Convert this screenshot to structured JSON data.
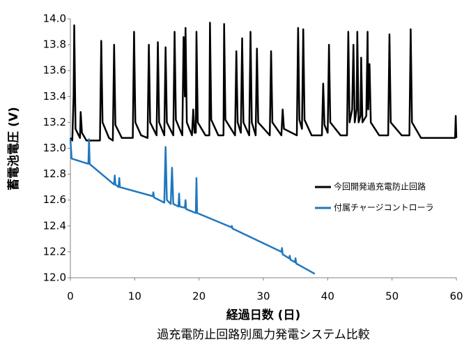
{
  "chart_data": {
    "type": "line",
    "title": "過充電防止回路別風力発電システム比較",
    "x_label": "経過日数 (日)",
    "y_label": "蓄電池電圧 (V)",
    "xlim": [
      0,
      60
    ],
    "xticks": [
      0,
      10,
      20,
      30,
      40,
      50,
      60
    ],
    "ylim": [
      12.0,
      14.0
    ],
    "yticks": [
      {
        "value": 12.0,
        "label": "12.0"
      },
      12.2,
      12.4,
      12.6,
      12.8,
      {
        "value": 13.0,
        "label": "13.0"
      },
      13.2,
      13.4,
      13.6,
      13.8,
      {
        "value": 14.0,
        "label": "14.0"
      }
    ],
    "grid": false,
    "legend": "right",
    "series": [
      {
        "name": "今回開発過充電防止回路",
        "color": "#000000",
        "x": [
          0,
          0.3,
          0.5,
          0.6,
          0.8,
          1.5,
          1.6,
          1.8,
          2.5,
          4.6,
          4.8,
          5.0,
          6.0,
          6.6,
          6.8,
          7.0,
          8.0,
          9.7,
          9.9,
          10.1,
          11.0,
          12.0,
          12.2,
          12.4,
          13.4,
          13.6,
          13.8,
          14.6,
          14.8,
          15.0,
          16.0,
          16.2,
          16.4,
          17.4,
          17.6,
          17.8,
          17.9,
          18.1,
          18.9,
          19.1,
          19.3,
          19.5,
          19.6,
          19.8,
          21.0,
          21.6,
          21.7,
          21.9,
          23.0,
          23.8,
          23.9,
          24.1,
          25.6,
          25.8,
          26.0,
          26.5,
          26.7,
          26.9,
          27.8,
          28.0,
          28.2,
          28.8,
          29.0,
          29.2,
          31.0,
          31.2,
          31.4,
          32.8,
          33.0,
          33.2,
          35.2,
          35.4,
          35.6,
          36.0,
          36.2,
          36.4,
          37.5,
          39.1,
          39.3,
          39.5,
          40.0,
          40.2,
          40.4,
          42.0,
          43.0,
          43.2,
          43.4,
          43.8,
          44.0,
          44.2,
          44.5,
          44.6,
          44.8,
          45.1,
          45.2,
          45.4,
          46.0,
          46.2,
          46.3,
          46.5,
          46.7,
          48.0,
          49.4,
          49.6,
          49.8,
          51.5,
          52.7,
          52.9,
          53.1,
          54.5,
          57.0,
          59.0,
          59.8,
          59.9,
          60.0
        ],
        "values": [
          13.08,
          13.06,
          13.4,
          13.95,
          13.15,
          13.08,
          13.28,
          13.12,
          13.06,
          13.06,
          13.83,
          13.2,
          13.08,
          13.06,
          13.8,
          13.18,
          13.08,
          13.08,
          13.9,
          13.2,
          13.1,
          13.08,
          13.8,
          13.2,
          13.1,
          13.82,
          13.2,
          13.1,
          13.78,
          13.2,
          13.1,
          13.9,
          13.22,
          13.1,
          13.86,
          13.4,
          13.93,
          13.2,
          13.1,
          13.3,
          13.12,
          13.12,
          13.9,
          13.2,
          13.1,
          13.1,
          13.97,
          13.22,
          13.1,
          13.1,
          13.96,
          13.22,
          13.1,
          13.75,
          13.2,
          13.12,
          13.85,
          13.2,
          13.1,
          13.9,
          13.2,
          13.1,
          13.77,
          13.2,
          13.1,
          13.75,
          13.2,
          13.1,
          13.3,
          13.15,
          13.1,
          13.93,
          13.22,
          13.15,
          13.92,
          13.22,
          13.1,
          13.1,
          13.5,
          13.18,
          13.12,
          13.8,
          13.2,
          13.1,
          13.1,
          13.9,
          13.2,
          13.3,
          13.8,
          13.2,
          13.3,
          13.9,
          13.2,
          13.25,
          13.7,
          13.2,
          13.25,
          13.9,
          13.3,
          13.65,
          13.2,
          13.1,
          13.1,
          13.88,
          13.2,
          13.1,
          13.1,
          13.92,
          13.2,
          13.08,
          13.08,
          13.08,
          13.08,
          13.25,
          13.08
        ]
      },
      {
        "name": "付属チャージコントローラ",
        "color": "#1f77c0",
        "x": [
          0,
          0.2,
          2.8,
          2.9,
          3.0,
          3.2,
          6.8,
          6.9,
          7.0,
          7.5,
          7.6,
          7.7,
          12.8,
          12.9,
          13.0,
          14.6,
          14.8,
          15.0,
          15.6,
          15.8,
          16.0,
          16.8,
          16.9,
          17.0,
          17.8,
          17.9,
          18.0,
          19.5,
          19.6,
          19.7,
          25.0,
          25.1,
          25.2,
          32.8,
          32.9,
          33.0,
          34.0,
          34.1,
          34.2,
          34.9,
          35.0,
          35.1,
          38.0
        ],
        "values": [
          13.07,
          12.92,
          12.88,
          13.07,
          12.88,
          12.87,
          12.72,
          12.79,
          12.72,
          12.7,
          12.77,
          12.7,
          12.63,
          12.66,
          12.62,
          12.58,
          13.01,
          12.6,
          12.57,
          12.85,
          12.57,
          12.55,
          12.65,
          12.55,
          12.54,
          12.6,
          12.53,
          12.5,
          12.77,
          12.5,
          12.39,
          12.4,
          12.38,
          12.2,
          12.23,
          12.18,
          12.15,
          12.17,
          12.14,
          12.12,
          12.15,
          12.11,
          12.03
        ]
      }
    ]
  }
}
